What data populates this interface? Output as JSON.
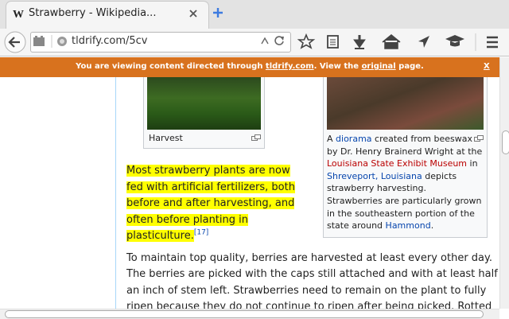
{
  "browser": {
    "tab_title": "Strawberry - Wikipedia...",
    "url": "tldrify.com/5cv"
  },
  "banner": {
    "segments": [
      "You are viewing content directed through ",
      "tldrify.com",
      ". View the ",
      "original",
      " page."
    ],
    "close": "X"
  },
  "article": {
    "figures": [
      {
        "caption": "Harvest"
      },
      {
        "caption": [
          "A ",
          "diorama",
          " created from beeswax by Dr. Henry Brainerd Wright at the ",
          "Louisiana State Exhibit Museum",
          " in ",
          "Shreveport, Louisiana",
          " depicts strawberry harvesting. Strawberries are particularly grown in the southeastern portion of the state around ",
          "Hammond",
          "."
        ]
      }
    ],
    "paragraphs": [
      {
        "text": "Most strawberry plants are now fed with artificial fertilizers, both before and after harvesting, and often before planting in plasticulture.",
        "citation": "[17]"
      },
      {
        "text": "To maintain top quality, berries are harvested at least every other day. The berries are picked with the caps still attached and with at least half an inch of stem left. Strawberries need to remain on the plant to fully ripen because they do not continue to ripen after being picked. Rotted"
      }
    ]
  }
}
